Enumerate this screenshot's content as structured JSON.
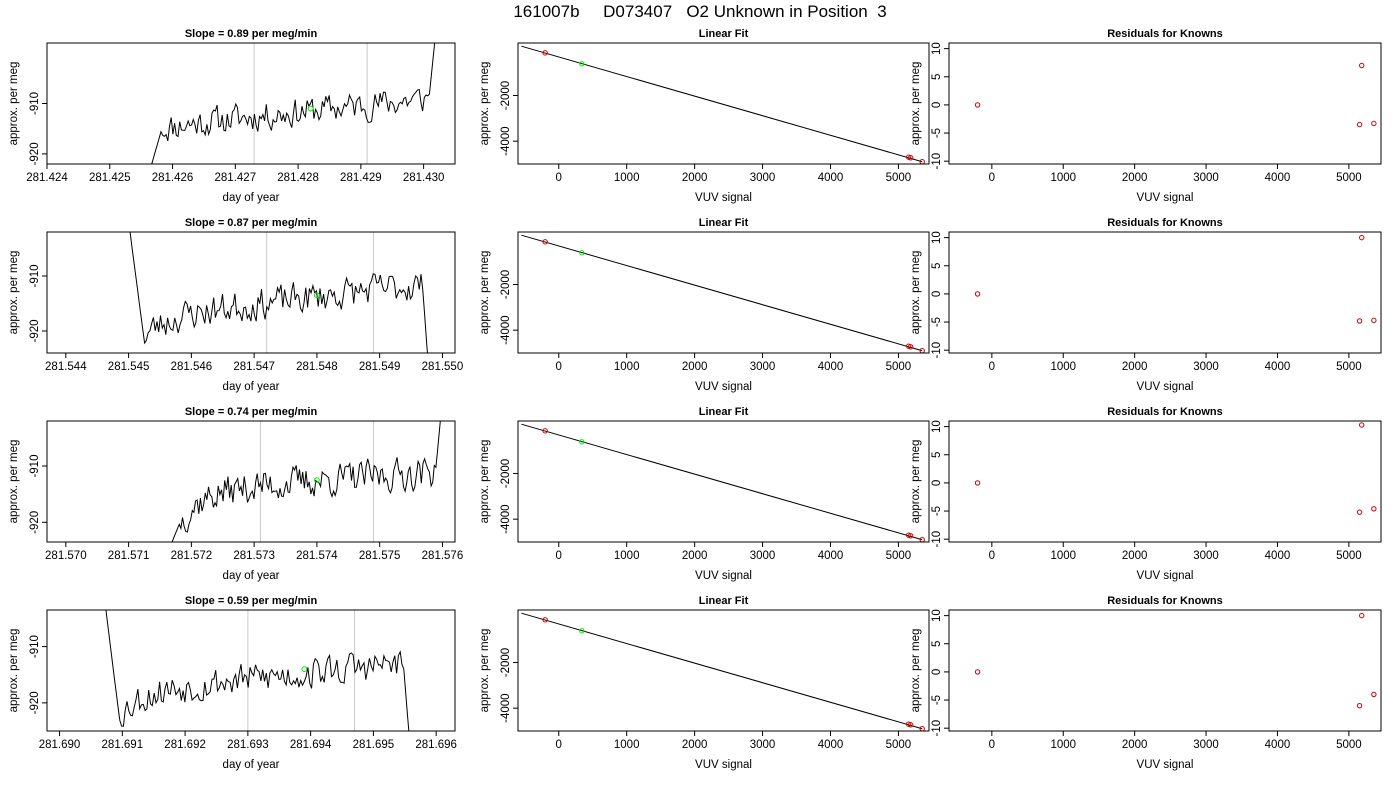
{
  "page_title": "161007b     D073407   O2 Unknown in Position  3",
  "colors": {
    "line": "#000000",
    "grid": "#c8c8c8",
    "known": "#cc0000",
    "unknown": "#00ee00"
  },
  "chart_data": [
    {
      "type": "line",
      "title": "Slope =  0.89  per meg/min",
      "xlabel": "day of year",
      "ylabel": "approx. per meg",
      "xlim": [
        281.424,
        281.4305
      ],
      "ylim": [
        -922,
        -898
      ],
      "xticks": [
        "281.424",
        "281.425",
        "281.426",
        "281.427",
        "281.428",
        "281.429",
        "281.430"
      ],
      "yticks": [
        "-910",
        "-920"
      ],
      "vlines": [
        281.4273,
        281.4291
      ],
      "start": 281.4256,
      "end": 281.4302,
      "entry": -925,
      "exit": -895,
      "dip": -915,
      "level": -914.5,
      "drift": 5.5,
      "seed": 11,
      "marker": {
        "x": 281.4282,
        "y": -911
      }
    },
    {
      "type": "scatter",
      "title": "Linear Fit",
      "xlabel": "VUV signal",
      "ylabel": "approx. per meg",
      "xlim": [
        -600,
        5450
      ],
      "ylim": [
        -5000,
        300
      ],
      "xticks": [
        "0",
        "1000",
        "2000",
        "3000",
        "4000",
        "5000"
      ],
      "yticks": [
        "-2000",
        "-4000"
      ],
      "fit_line": [
        [
          -550,
          160
        ],
        [
          5350,
          -4900
        ]
      ],
      "known_points": [
        [
          -200,
          -130
        ],
        [
          5150,
          -4700
        ],
        [
          5180,
          -4730
        ],
        [
          5350,
          -4900
        ]
      ],
      "unknown_points": [
        [
          340,
          -610
        ]
      ]
    },
    {
      "type": "scatter",
      "title": "Residuals for Knowns",
      "xlabel": "VUV signal",
      "ylabel": "approx. per meg",
      "xlim": [
        -600,
        5450
      ],
      "ylim": [
        -10.5,
        11
      ],
      "xticks": [
        "0",
        "1000",
        "2000",
        "3000",
        "4000",
        "5000"
      ],
      "yticks": [
        "10",
        "5",
        "0",
        "-5",
        "-10"
      ],
      "known_points": [
        [
          -200,
          0
        ],
        [
          5180,
          7
        ],
        [
          5150,
          -3.5
        ],
        [
          5350,
          -3.3
        ]
      ]
    },
    {
      "type": "line",
      "title": "Slope =  0.87  per meg/min",
      "xlabel": "day of year",
      "ylabel": "approx. per meg",
      "xlim": [
        281.5437,
        281.5502
      ],
      "ylim": [
        -924,
        -902
      ],
      "xticks": [
        "281.544",
        "281.545",
        "281.546",
        "281.547",
        "281.548",
        "281.549",
        "281.550"
      ],
      "yticks": [
        "-910",
        "-920"
      ],
      "vlines": [
        281.5472,
        281.5489
      ],
      "start": 281.545,
      "end": 281.5498,
      "entry": -900,
      "exit": -930,
      "dip": -921,
      "level": -917.5,
      "drift": 6,
      "seed": 23,
      "marker": {
        "x": 281.548,
        "y": -913.5
      }
    },
    {
      "type": "scatter",
      "title": "Linear Fit",
      "xlabel": "VUV signal",
      "ylabel": "approx. per meg",
      "xlim": [
        -600,
        5450
      ],
      "ylim": [
        -5000,
        300
      ],
      "xticks": [
        "0",
        "1000",
        "2000",
        "3000",
        "4000",
        "5000"
      ],
      "yticks": [
        "-2000",
        "-4000"
      ],
      "fit_line": [
        [
          -550,
          160
        ],
        [
          5350,
          -4900
        ]
      ],
      "known_points": [
        [
          -200,
          -130
        ],
        [
          5150,
          -4700
        ],
        [
          5180,
          -4730
        ],
        [
          5350,
          -4900
        ]
      ],
      "unknown_points": [
        [
          340,
          -610
        ]
      ]
    },
    {
      "type": "scatter",
      "title": "Residuals for Knowns",
      "xlabel": "VUV signal",
      "ylabel": "approx. per meg",
      "xlim": [
        -600,
        5450
      ],
      "ylim": [
        -10.5,
        11
      ],
      "xticks": [
        "0",
        "1000",
        "2000",
        "3000",
        "4000",
        "5000"
      ],
      "yticks": [
        "10",
        "5",
        "0",
        "-5",
        "-10"
      ],
      "known_points": [
        [
          -200,
          0
        ],
        [
          5180,
          10
        ],
        [
          5150,
          -4.8
        ],
        [
          5350,
          -4.7
        ]
      ]
    },
    {
      "type": "line",
      "title": "Slope =  0.74  per meg/min",
      "xlabel": "day of year",
      "ylabel": "approx. per meg",
      "xlim": [
        281.5697,
        281.5762
      ],
      "ylim": [
        -923.5,
        -902
      ],
      "xticks": [
        "281.570",
        "281.571",
        "281.572",
        "281.573",
        "281.574",
        "281.575",
        "281.576"
      ],
      "yticks": [
        "-910",
        "-920"
      ],
      "vlines": [
        281.5731,
        281.5749
      ],
      "start": 281.5716,
      "end": 281.576,
      "entry": -926,
      "exit": -898,
      "dip": -920,
      "level": -914.5,
      "drift": 3.5,
      "seed": 37,
      "marker": {
        "x": 281.574,
        "y": -912.5
      }
    },
    {
      "type": "scatter",
      "title": "Linear Fit",
      "xlabel": "VUV signal",
      "ylabel": "approx. per meg",
      "xlim": [
        -600,
        5450
      ],
      "ylim": [
        -5000,
        300
      ],
      "xticks": [
        "0",
        "1000",
        "2000",
        "3000",
        "4000",
        "5000"
      ],
      "yticks": [
        "-2000",
        "-4000"
      ],
      "fit_line": [
        [
          -550,
          160
        ],
        [
          5350,
          -4900
        ]
      ],
      "known_points": [
        [
          -200,
          -130
        ],
        [
          5150,
          -4700
        ],
        [
          5180,
          -4730
        ],
        [
          5350,
          -4900
        ]
      ],
      "unknown_points": [
        [
          340,
          -610
        ]
      ]
    },
    {
      "type": "scatter",
      "title": "Residuals for Knowns",
      "xlabel": "VUV signal",
      "ylabel": "approx. per meg",
      "xlim": [
        -600,
        5450
      ],
      "ylim": [
        -10.5,
        11
      ],
      "xticks": [
        "0",
        "1000",
        "2000",
        "3000",
        "4000",
        "5000"
      ],
      "yticks": [
        "10",
        "5",
        "0",
        "-5",
        "-10"
      ],
      "known_points": [
        [
          -200,
          0
        ],
        [
          5180,
          10.3
        ],
        [
          5150,
          -5.2
        ],
        [
          5350,
          -4.6
        ]
      ]
    },
    {
      "type": "line",
      "title": "Slope =  0.59  per meg/min",
      "xlabel": "day of year",
      "ylabel": "approx. per meg",
      "xlim": [
        281.6898,
        281.6963
      ],
      "ylim": [
        -925,
        -903.5
      ],
      "xticks": [
        "281.690",
        "281.691",
        "281.692",
        "281.693",
        "281.694",
        "281.695",
        "281.696"
      ],
      "yticks": [
        "-910",
        "-920"
      ],
      "vlines": [
        281.693,
        281.6947
      ],
      "start": 281.6907,
      "end": 281.6956,
      "entry": -900,
      "exit": -930,
      "dip": -922,
      "level": -918,
      "drift": 5,
      "seed": 53,
      "marker": {
        "x": 281.6939,
        "y": -914
      }
    },
    {
      "type": "scatter",
      "title": "Linear Fit",
      "xlabel": "VUV signal",
      "ylabel": "approx. per meg",
      "xlim": [
        -600,
        5450
      ],
      "ylim": [
        -5000,
        300
      ],
      "xticks": [
        "0",
        "1000",
        "2000",
        "3000",
        "4000",
        "5000"
      ],
      "yticks": [
        "-2000",
        "-4000"
      ],
      "fit_line": [
        [
          -550,
          160
        ],
        [
          5350,
          -4900
        ]
      ],
      "known_points": [
        [
          -200,
          -130
        ],
        [
          5150,
          -4700
        ],
        [
          5180,
          -4730
        ],
        [
          5350,
          -4900
        ]
      ],
      "unknown_points": [
        [
          340,
          -610
        ]
      ]
    },
    {
      "type": "scatter",
      "title": "Residuals for Knowns",
      "xlabel": "VUV signal",
      "ylabel": "approx. per meg",
      "xlim": [
        -600,
        5450
      ],
      "ylim": [
        -10.5,
        11
      ],
      "xticks": [
        "0",
        "1000",
        "2000",
        "3000",
        "4000",
        "5000"
      ],
      "yticks": [
        "10",
        "5",
        "0",
        "-5",
        "-10"
      ],
      "known_points": [
        [
          -200,
          0
        ],
        [
          5180,
          10
        ],
        [
          5150,
          -6
        ],
        [
          5350,
          -4
        ]
      ]
    }
  ]
}
